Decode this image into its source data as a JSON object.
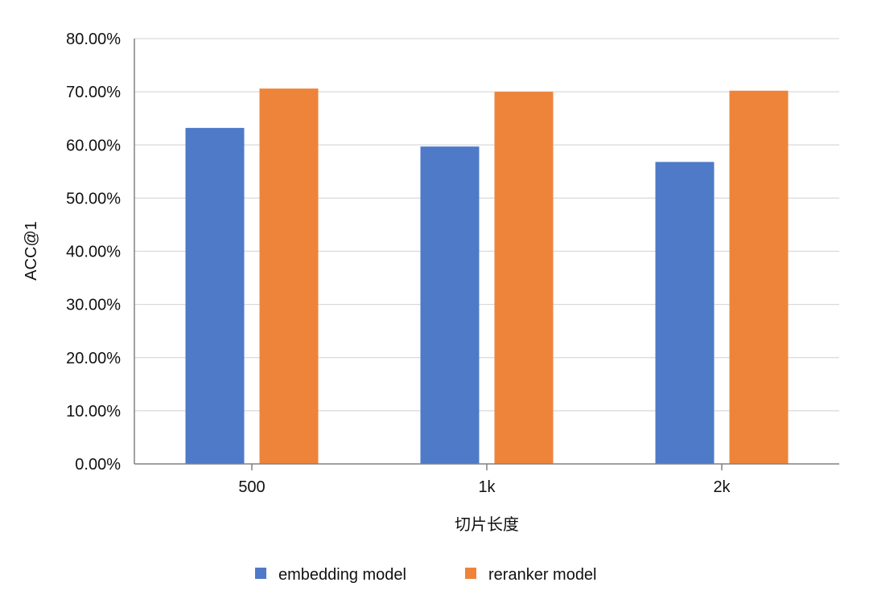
{
  "chart_data": {
    "type": "bar",
    "categories": [
      "500",
      "1k",
      "2k"
    ],
    "series": [
      {
        "name": "embedding model",
        "color": "#4E7AC7",
        "values": [
          63.2,
          59.7,
          56.8
        ]
      },
      {
        "name": "reranker model",
        "color": "#EE843A",
        "values": [
          70.6,
          70.0,
          70.2
        ]
      }
    ],
    "xlabel": "切片长度",
    "ylabel": "ACC@1",
    "ylim": [
      0,
      80
    ],
    "yticks": [
      0,
      10,
      20,
      30,
      40,
      50,
      60,
      70,
      80
    ],
    "ytick_labels": [
      "0.00%",
      "10.00%",
      "20.00%",
      "30.00%",
      "40.00%",
      "50.00%",
      "60.00%",
      "70.00%",
      "80.00%"
    ],
    "grid": true,
    "legend_position": "bottom",
    "gridline_color": "#D9D9D9",
    "axis_color": "#808080"
  }
}
